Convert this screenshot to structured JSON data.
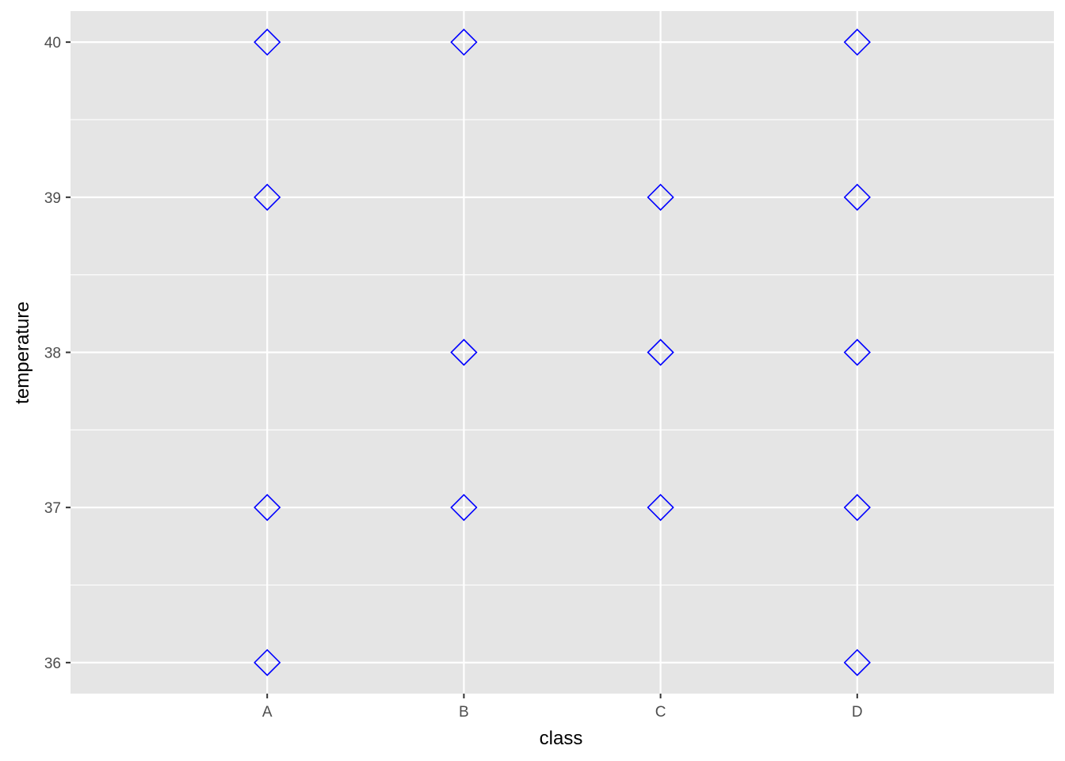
{
  "chart_data": {
    "type": "scatter",
    "title": "",
    "xlabel": "class",
    "ylabel": "temperature",
    "categories": [
      "A",
      "B",
      "C",
      "D"
    ],
    "yticks": [
      36,
      37,
      38,
      39,
      40
    ],
    "ylim": [
      35.8,
      40.2
    ],
    "grid": true,
    "marker": "diamond-open",
    "colors": {
      "panel": "#e5e5e5",
      "grid": "#ffffff",
      "point": "#0000ff",
      "tick_text": "#4d4d4d",
      "tick_mark": "#333333"
    },
    "points": [
      {
        "x": "A",
        "y": 40
      },
      {
        "x": "A",
        "y": 39
      },
      {
        "x": "A",
        "y": 37
      },
      {
        "x": "A",
        "y": 36
      },
      {
        "x": "B",
        "y": 40
      },
      {
        "x": "B",
        "y": 38
      },
      {
        "x": "B",
        "y": 37
      },
      {
        "x": "C",
        "y": 39
      },
      {
        "x": "C",
        "y": 38
      },
      {
        "x": "C",
        "y": 37
      },
      {
        "x": "D",
        "y": 40
      },
      {
        "x": "D",
        "y": 39
      },
      {
        "x": "D",
        "y": 38
      },
      {
        "x": "D",
        "y": 37
      },
      {
        "x": "D",
        "y": 36
      }
    ]
  }
}
